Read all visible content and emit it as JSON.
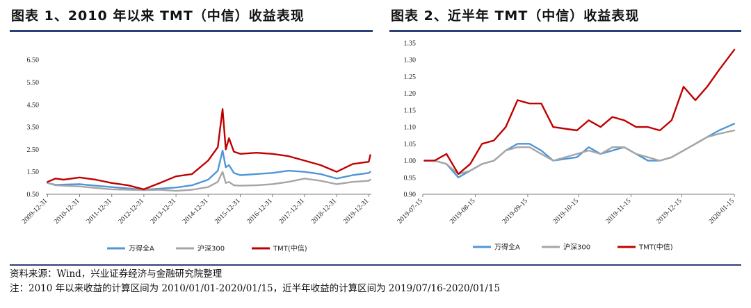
{
  "chart_data": [
    {
      "type": "line",
      "title": "图表 1、2010 年以来 TMT（中信）收益表现",
      "xlabel": "",
      "ylabel": "",
      "ylim": [
        0.5,
        7.0
      ],
      "yticks": [
        "6.50",
        "5.50",
        "4.50",
        "3.50",
        "2.50",
        "1.50",
        "0.50"
      ],
      "xticks": [
        "2009-12-31",
        "2010-12-31",
        "2011-12-31",
        "2012-12-31",
        "2013-12-31",
        "2014-12-31",
        "2015-12-31",
        "2016-12-31",
        "2017-12-31",
        "2018-12-31",
        "2019-12-31"
      ],
      "grid": false,
      "legend": "bottom",
      "x": [
        0,
        0.25,
        0.5,
        1.0,
        1.5,
        2.0,
        2.5,
        3.0,
        3.5,
        4.0,
        4.5,
        5.0,
        5.3,
        5.45,
        5.55,
        5.65,
        5.8,
        6.0,
        6.5,
        7.0,
        7.5,
        8.0,
        8.5,
        9.0,
        9.5,
        10.0,
        10.05
      ],
      "series": [
        {
          "name": "万得全A",
          "color": "#4f96d8",
          "values": [
            1.0,
            0.92,
            0.93,
            0.95,
            0.88,
            0.82,
            0.76,
            0.7,
            0.75,
            0.8,
            0.9,
            1.15,
            1.55,
            2.45,
            1.7,
            1.8,
            1.45,
            1.35,
            1.4,
            1.45,
            1.55,
            1.5,
            1.4,
            1.2,
            1.35,
            1.45,
            1.5
          ]
        },
        {
          "name": "沪深300",
          "color": "#a6a6a6",
          "values": [
            1.0,
            0.9,
            0.88,
            0.85,
            0.78,
            0.72,
            0.7,
            0.68,
            0.7,
            0.65,
            0.7,
            0.82,
            1.05,
            1.5,
            1.0,
            1.05,
            0.9,
            0.88,
            0.9,
            0.95,
            1.05,
            1.2,
            1.1,
            0.95,
            1.05,
            1.1,
            1.15
          ]
        },
        {
          "name": "TMT(中信)",
          "color": "#c00000",
          "values": [
            1.05,
            1.2,
            1.15,
            1.25,
            1.15,
            1.0,
            0.9,
            0.72,
            1.0,
            1.3,
            1.4,
            2.0,
            2.6,
            4.3,
            2.5,
            3.0,
            2.4,
            2.3,
            2.35,
            2.3,
            2.2,
            2.0,
            1.8,
            1.5,
            1.85,
            1.95,
            2.25
          ]
        }
      ]
    },
    {
      "type": "line",
      "title": "图表 2、近半年 TMT（中信）收益表现",
      "xlabel": "",
      "ylabel": "",
      "ylim": [
        0.9,
        1.35
      ],
      "yticks": [
        "1.35",
        "1.30",
        "1.25",
        "1.20",
        "1.15",
        "1.10",
        "1.05",
        "1.00",
        "0.95",
        "0.90"
      ],
      "xticks": [
        "2019-07-15",
        "2019-08-15",
        "2019-09-15",
        "2019-10-15",
        "2019-11-15",
        "2019-12-15",
        "2020-01-15"
      ],
      "grid": false,
      "legend": "bottom",
      "x": [
        "2019-07-16",
        "2019-07-22",
        "2019-07-29",
        "2019-08-05",
        "2019-08-12",
        "2019-08-19",
        "2019-08-26",
        "2019-09-02",
        "2019-09-09",
        "2019-09-16",
        "2019-09-23",
        "2019-09-30",
        "2019-10-14",
        "2019-10-21",
        "2019-10-28",
        "2019-11-04",
        "2019-11-11",
        "2019-11-18",
        "2019-11-25",
        "2019-12-02",
        "2019-12-09",
        "2019-12-16",
        "2019-12-23",
        "2019-12-30",
        "2020-01-06",
        "2020-01-15"
      ],
      "series": [
        {
          "name": "万得全A",
          "color": "#4f96d8",
          "values": [
            1.0,
            1.0,
            0.99,
            0.95,
            0.97,
            0.99,
            1.0,
            1.03,
            1.05,
            1.05,
            1.03,
            1.0,
            1.01,
            1.04,
            1.02,
            1.03,
            1.04,
            1.02,
            1.0,
            1.0,
            1.01,
            1.03,
            1.05,
            1.07,
            1.09,
            1.11
          ]
        },
        {
          "name": "沪深300",
          "color": "#a6a6a6",
          "values": [
            1.0,
            1.0,
            0.99,
            0.96,
            0.97,
            0.99,
            1.0,
            1.03,
            1.04,
            1.04,
            1.02,
            1.0,
            1.02,
            1.03,
            1.02,
            1.04,
            1.04,
            1.02,
            1.01,
            1.0,
            1.01,
            1.03,
            1.05,
            1.07,
            1.08,
            1.09
          ]
        },
        {
          "name": "TMT(中信)",
          "color": "#c00000",
          "values": [
            1.0,
            1.0,
            1.02,
            0.96,
            0.99,
            1.05,
            1.06,
            1.1,
            1.18,
            1.17,
            1.17,
            1.1,
            1.09,
            1.12,
            1.1,
            1.13,
            1.12,
            1.1,
            1.1,
            1.09,
            1.12,
            1.22,
            1.18,
            1.22,
            1.27,
            1.33
          ]
        }
      ]
    }
  ],
  "footer": {
    "source": "资料来源：Wind，兴业证券经济与金融研究院整理",
    "note": "注：2010 年以来收益的计算区间为 2010/01/01-2020/01/15，近半年收益的计算区间为 2019/07/16-2020/01/15"
  }
}
